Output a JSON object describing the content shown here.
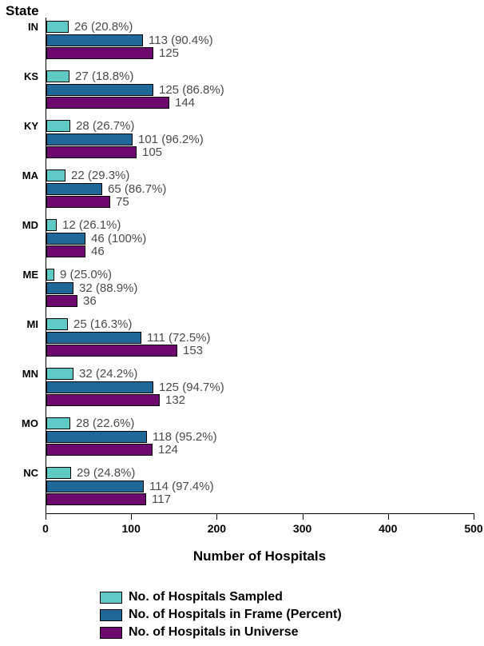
{
  "chart_data": {
    "type": "bar",
    "orientation": "horizontal",
    "state_axis_label": "State",
    "xlabel": "Number of Hospitals",
    "xlim": [
      0,
      500
    ],
    "x_ticks": [
      0,
      100,
      200,
      300,
      400,
      500
    ],
    "grid": false,
    "legend_position": "bottom-left",
    "categories": [
      "IN",
      "KS",
      "KY",
      "MA",
      "MD",
      "ME",
      "MI",
      "MN",
      "MO",
      "NC"
    ],
    "series": [
      {
        "name": "No. of Hospitals Sampled",
        "color": "#5FC9C5",
        "values": [
          26,
          27,
          28,
          22,
          12,
          9,
          25,
          32,
          28,
          29
        ],
        "labels": [
          "26 (20.8%)",
          "27 (18.8%)",
          "28 (26.7%)",
          "22 (29.3%)",
          "12 (26.1%)",
          "9 (25.0%)",
          "25 (16.3%)",
          "32 (24.2%)",
          "28 (22.6%)",
          "29 (24.8%)"
        ]
      },
      {
        "name": "No. of Hospitals in Frame (Percent)",
        "color": "#1E689A",
        "values": [
          113,
          125,
          101,
          65,
          46,
          32,
          111,
          125,
          118,
          114
        ],
        "labels": [
          "113 (90.4%)",
          "125 (86.8%)",
          "101 (96.2%)",
          "65 (86.7%)",
          "46 (100%)",
          "32 (88.9%)",
          "111 (72.5%)",
          "125 (94.7%)",
          "118 (95.2%)",
          "114 (97.4%)"
        ]
      },
      {
        "name": "No. of Hospitals in Universe",
        "color": "#6D096D",
        "values": [
          125,
          144,
          105,
          75,
          46,
          36,
          153,
          132,
          124,
          117
        ],
        "labels": [
          "125",
          "144",
          "105",
          "75",
          "46",
          "36",
          "153",
          "132",
          "124",
          "117"
        ]
      }
    ]
  }
}
